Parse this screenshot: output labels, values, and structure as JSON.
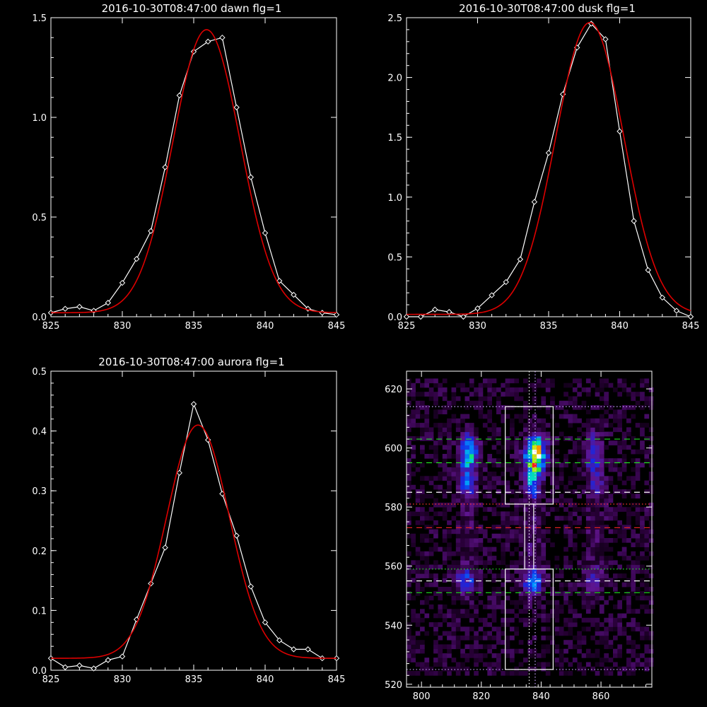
{
  "chart_data": [
    {
      "type": "line",
      "title": "2016-10-30T08:47:00 dawn flg=1",
      "xlim": [
        825,
        845
      ],
      "ylim": [
        0,
        1.5
      ],
      "xticks": [
        825,
        830,
        835,
        840,
        845
      ],
      "yticks": [
        0.0,
        0.5,
        1.0,
        1.5
      ],
      "ytick_labels": [
        "0.0",
        "0.5",
        "1.0",
        "1.5"
      ],
      "series": [
        {
          "style": "data",
          "color": "#ffffff",
          "marker": "diamond",
          "x": [
            825,
            826,
            827,
            828,
            829,
            830,
            831,
            832,
            833,
            834,
            835,
            836,
            837,
            838,
            839,
            840,
            841,
            842,
            843,
            844,
            845
          ],
          "y": [
            0.02,
            0.04,
            0.05,
            0.03,
            0.07,
            0.17,
            0.29,
            0.43,
            0.75,
            1.11,
            1.33,
            1.38,
            1.4,
            1.05,
            0.7,
            0.42,
            0.18,
            0.11,
            0.04,
            0.02,
            0.01
          ]
        },
        {
          "style": "fit",
          "color": "#dd0000",
          "fit": {
            "amp": 1.42,
            "mu": 835.9,
            "sigma": 2.35,
            "base": 0.02
          }
        }
      ]
    },
    {
      "type": "line",
      "title": "2016-10-30T08:47:00 dusk flg=1",
      "xlim": [
        825,
        845
      ],
      "ylim": [
        0,
        2.5
      ],
      "xticks": [
        825,
        830,
        835,
        840,
        845
      ],
      "yticks": [
        0.0,
        0.5,
        1.0,
        1.5,
        2.0,
        2.5
      ],
      "ytick_labels": [
        "0.0",
        "0.5",
        "1.0",
        "1.5",
        "2.0",
        "2.5"
      ],
      "series": [
        {
          "style": "data",
          "color": "#ffffff",
          "marker": "diamond",
          "x": [
            825,
            826,
            827,
            828,
            829,
            830,
            831,
            832,
            833,
            834,
            835,
            836,
            837,
            838,
            839,
            840,
            841,
            842,
            843,
            844,
            845
          ],
          "y": [
            0.0,
            0.0,
            0.06,
            0.04,
            0.0,
            0.07,
            0.18,
            0.29,
            0.48,
            0.96,
            1.37,
            1.86,
            2.25,
            2.45,
            2.32,
            1.55,
            0.8,
            0.39,
            0.16,
            0.05,
            0.0
          ]
        },
        {
          "style": "fit",
          "color": "#dd0000",
          "fit": {
            "amp": 2.44,
            "mu": 837.9,
            "sigma": 2.4,
            "base": 0.02
          }
        }
      ]
    },
    {
      "type": "line",
      "title": "2016-10-30T08:47:00 aurora flg=1",
      "xlim": [
        825,
        845
      ],
      "ylim": [
        0,
        0.5
      ],
      "xticks": [
        825,
        830,
        835,
        840,
        845
      ],
      "yticks": [
        0.0,
        0.1,
        0.2,
        0.3,
        0.4,
        0.5
      ],
      "ytick_labels": [
        "0.0",
        "0.1",
        "0.2",
        "0.3",
        "0.4",
        "0.5"
      ],
      "series": [
        {
          "style": "data",
          "color": "#ffffff",
          "marker": "diamond",
          "x": [
            825,
            826,
            827,
            828,
            829,
            830,
            831,
            832,
            833,
            834,
            835,
            836,
            837,
            838,
            839,
            840,
            841,
            842,
            843,
            844,
            845
          ],
          "y": [
            0.02,
            0.005,
            0.008,
            0.003,
            0.017,
            0.023,
            0.085,
            0.145,
            0.205,
            0.33,
            0.445,
            0.385,
            0.295,
            0.225,
            0.14,
            0.08,
            0.05,
            0.035,
            0.035,
            0.02,
            0.02
          ]
        },
        {
          "style": "fit",
          "color": "#dd0000",
          "fit": {
            "amp": 0.39,
            "mu": 835.3,
            "sigma": 2.2,
            "base": 0.02
          }
        }
      ]
    },
    {
      "type": "heatmap",
      "title": "",
      "xlim": [
        795,
        877
      ],
      "ylim": [
        519,
        626
      ],
      "xticks": [
        800,
        820,
        840,
        860
      ],
      "yticks": [
        520,
        540,
        560,
        580,
        600,
        620
      ],
      "ytick_labels": [
        "520",
        "540",
        "560",
        "580",
        "600",
        "620"
      ],
      "cell_size": [
        1.5,
        1.5
      ],
      "blobs": [
        {
          "x": 837.5,
          "y": 597,
          "sx": 2.2,
          "sy": 4.0,
          "peak": 1.0
        },
        {
          "x": 836.5,
          "y": 588,
          "sx": 1.6,
          "sy": 3.5,
          "peak": 0.45
        },
        {
          "x": 815.0,
          "y": 598,
          "sx": 2.0,
          "sy": 4.0,
          "peak": 0.55
        },
        {
          "x": 814.5,
          "y": 588,
          "sx": 2.0,
          "sy": 4.0,
          "peak": 0.32
        },
        {
          "x": 857.0,
          "y": 597,
          "sx": 1.8,
          "sy": 5.0,
          "peak": 0.32
        },
        {
          "x": 857.5,
          "y": 587,
          "sx": 1.6,
          "sy": 3.0,
          "peak": 0.2
        },
        {
          "x": 836.5,
          "y": 554,
          "sx": 2.0,
          "sy": 3.0,
          "peak": 0.5
        },
        {
          "x": 814.0,
          "y": 554,
          "sx": 2.0,
          "sy": 3.0,
          "peak": 0.32
        },
        {
          "x": 856.5,
          "y": 554,
          "sx": 2.0,
          "sy": 3.0,
          "peak": 0.25
        },
        {
          "x": 836.0,
          "y": 572,
          "sx": 2.5,
          "sy": 12.0,
          "peak": 0.1
        },
        {
          "x": 815.0,
          "y": 572,
          "sx": 2.5,
          "sy": 12.0,
          "peak": 0.08
        },
        {
          "x": 857.0,
          "y": 572,
          "sx": 2.5,
          "sy": 12.0,
          "peak": 0.07
        }
      ],
      "hlines": [
        {
          "y": 614,
          "color": "#c8a0ff",
          "dash": "dotted"
        },
        {
          "y": 603,
          "color": "#22dd22",
          "dash": "dashed"
        },
        {
          "y": 595,
          "color": "#22dd22",
          "dash": "dashed"
        },
        {
          "y": 585,
          "color": "#ffffff",
          "dash": "dashed"
        },
        {
          "y": 581,
          "color": "#ff3333",
          "dash": "dotted"
        },
        {
          "y": 573,
          "color": "#dd2222",
          "dash": "dashed"
        },
        {
          "y": 559,
          "color": "#22dd22",
          "dash": "dotted"
        },
        {
          "y": 555,
          "color": "#ffffff",
          "dash": "dashed"
        },
        {
          "y": 551,
          "color": "#22dd22",
          "dash": "dashed"
        },
        {
          "y": 525,
          "color": "#c8a0ff",
          "dash": "dotted"
        }
      ],
      "vlines": [
        {
          "x": 836,
          "color": "#ffffff",
          "dash": "dotted"
        },
        {
          "x": 838,
          "color": "#c8a0ff",
          "dash": "dotted"
        }
      ],
      "boxes": [
        {
          "x0": 828,
          "x1": 844,
          "y0": 581,
          "y1": 614
        },
        {
          "x0": 828,
          "x1": 844,
          "y0": 525,
          "y1": 559
        },
        {
          "x0": 834.5,
          "x1": 837.5,
          "y0": 559,
          "y1": 581
        }
      ]
    }
  ]
}
